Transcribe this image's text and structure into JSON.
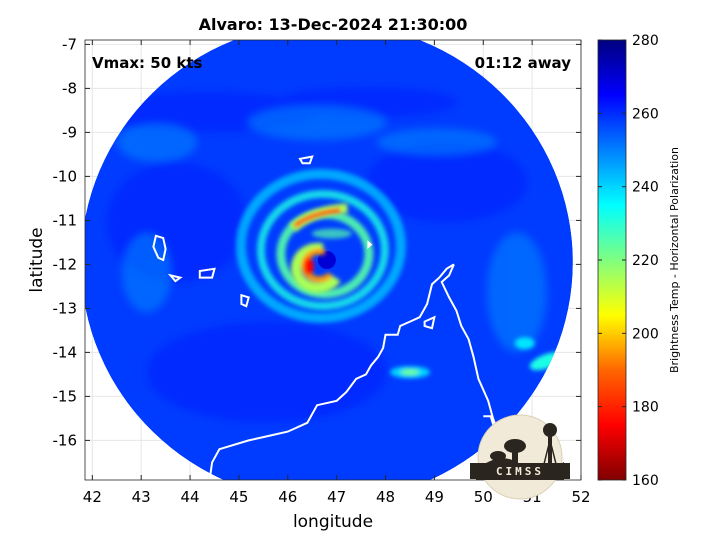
{
  "chart_data": {
    "type": "heatmap",
    "title": "Alvaro: 13-Dec-2024 21:30:00",
    "xlabel": "longitude",
    "ylabel": "latitude",
    "xlim": [
      41.85,
      52.0
    ],
    "ylim": [
      -16.9,
      -6.9
    ],
    "x_ticks": [
      42,
      43,
      44,
      45,
      46,
      47,
      48,
      49,
      50,
      51,
      52
    ],
    "y_ticks": [
      -7,
      -8,
      -9,
      -10,
      -11,
      -12,
      -13,
      -14,
      -15,
      -16
    ],
    "x_tick_labels": [
      "42",
      "43",
      "44",
      "45",
      "46",
      "47",
      "48",
      "49",
      "50",
      "51",
      "52"
    ],
    "y_tick_labels": [
      "-7",
      "-8",
      "-9",
      "-10",
      "-11",
      "-12",
      "-13",
      "-14",
      "-15",
      "-16"
    ],
    "colorbar": {
      "label": "Brightness Temp - Horizontal Polarization",
      "range": [
        160,
        280
      ],
      "ticks": [
        160,
        180,
        200,
        220,
        240,
        260,
        280
      ],
      "tick_labels": [
        "160",
        "180",
        "200",
        "220",
        "240",
        "260",
        "280"
      ],
      "colormap": "jet"
    },
    "annotations": {
      "vmax": "Vmax: 50 kts",
      "time_away": "01:12 away"
    },
    "storm_center": {
      "lon": 46.8,
      "lat": -11.9
    },
    "swath_center": {
      "lon": 46.8,
      "lat": -11.95
    },
    "features": [
      {
        "name": "eye",
        "lon": 46.8,
        "lat": -11.9,
        "value": 270
      },
      {
        "name": "eyewall-west",
        "lon": 46.55,
        "lat": -12.0,
        "value": 195
      },
      {
        "name": "eyewall-north-band",
        "lon": 46.3,
        "lat": -10.95,
        "value": 185
      },
      {
        "name": "inner-band",
        "lon": 46.9,
        "lat": -11.3,
        "value": 225
      },
      {
        "name": "convection-east",
        "lon": 48.5,
        "lat": -14.45,
        "value": 222
      },
      {
        "name": "convection-far-east",
        "lon": 51.3,
        "lat": -14.2,
        "value": 232
      },
      {
        "name": "background",
        "value": 258
      }
    ],
    "grid": true,
    "coastline_color": "#ffffff",
    "logo_text": "CIMSS"
  }
}
